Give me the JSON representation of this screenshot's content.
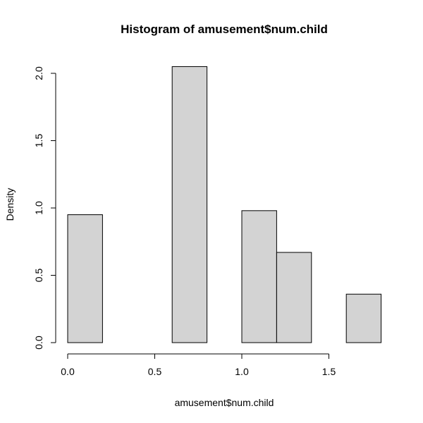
{
  "chart_data": {
    "type": "bar",
    "title": "Histogram of amusement$num.child",
    "xlabel": "amusement$num.child",
    "ylabel": "Density",
    "bins": [
      {
        "start": 0.0,
        "end": 0.2,
        "density": 0.95
      },
      {
        "start": 0.2,
        "end": 0.4,
        "density": 0.0
      },
      {
        "start": 0.4,
        "end": 0.6,
        "density": 0.0
      },
      {
        "start": 0.6,
        "end": 0.8,
        "density": 2.05
      },
      {
        "start": 0.8,
        "end": 1.0,
        "density": 0.0
      },
      {
        "start": 1.0,
        "end": 1.2,
        "density": 0.98
      },
      {
        "start": 1.2,
        "end": 1.4,
        "density": 0.67
      },
      {
        "start": 1.4,
        "end": 1.6,
        "density": 0.0
      },
      {
        "start": 1.6,
        "end": 1.8,
        "density": 0.36
      }
    ],
    "xlim": [
      0.0,
      1.8
    ],
    "ylim": [
      0.0,
      2.05
    ],
    "x_ticks": [
      "0.0",
      "0.5",
      "1.0",
      "1.5"
    ],
    "y_ticks": [
      "0.0",
      "0.5",
      "1.0",
      "1.5",
      "2.0"
    ],
    "bar_fill": "#d3d3d3",
    "bar_stroke": "#000000",
    "grid": false,
    "legend": "none"
  }
}
